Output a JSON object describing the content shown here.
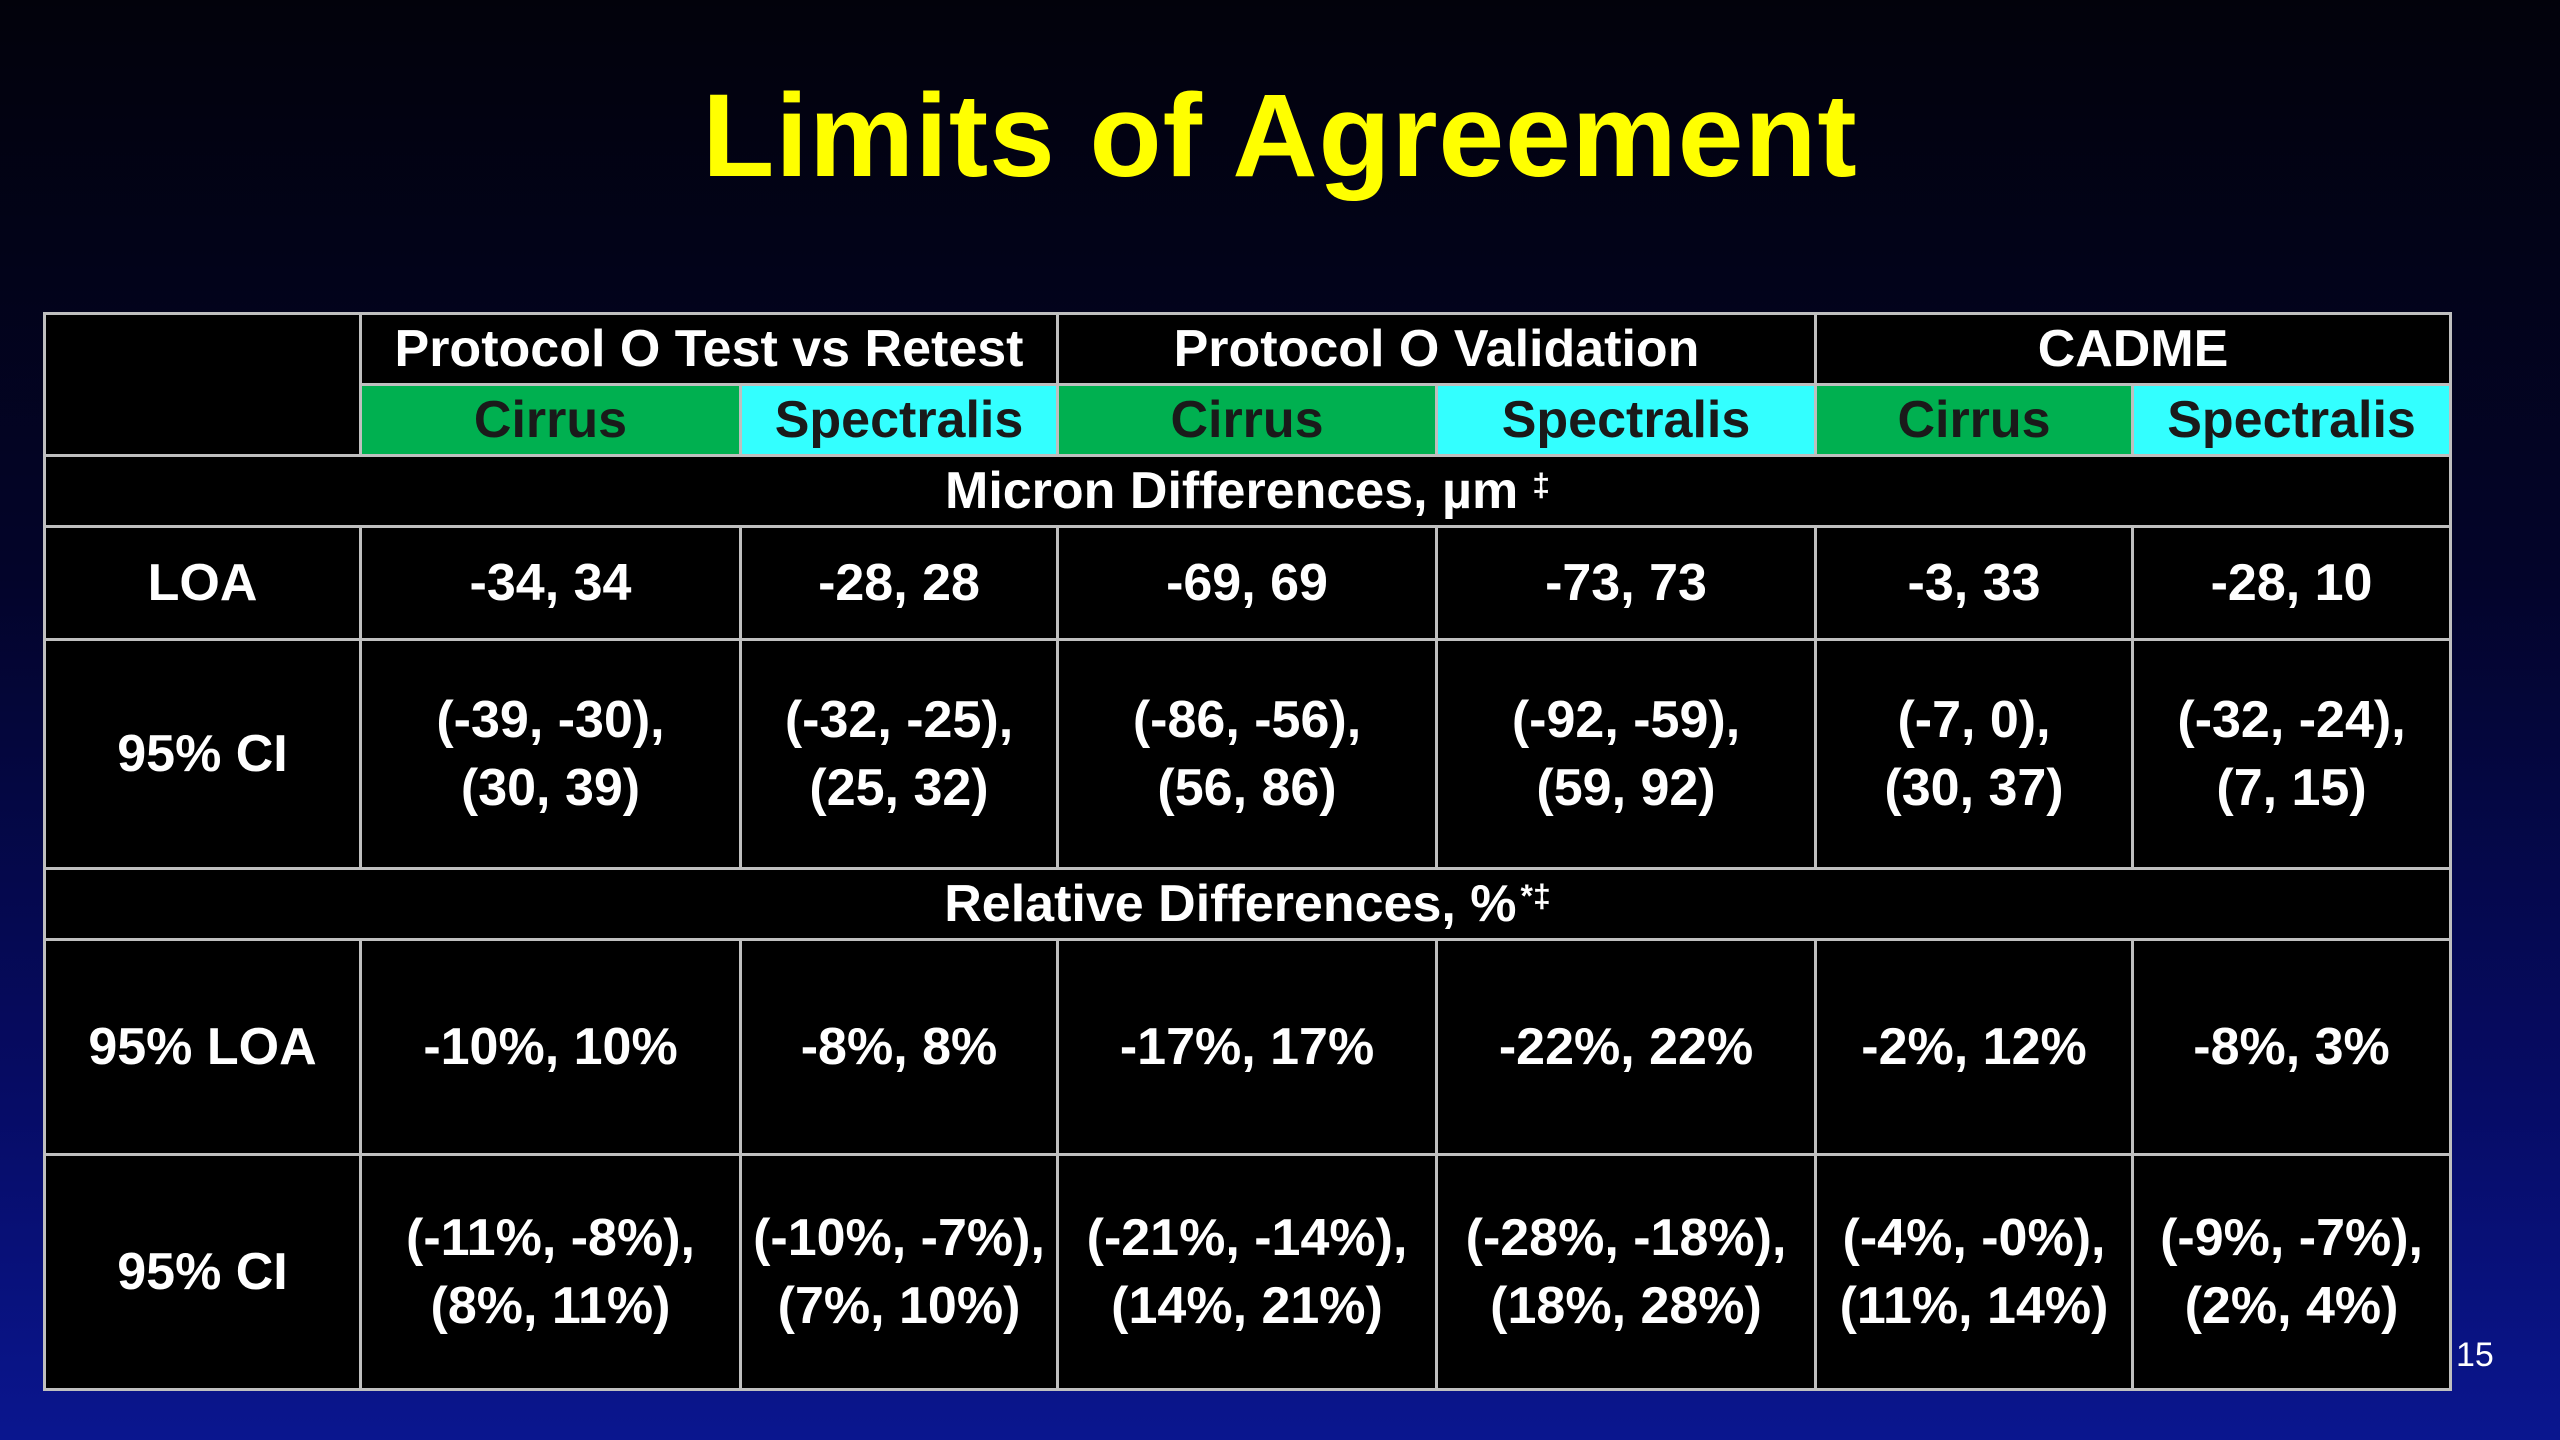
{
  "title": "Limits of Agreement",
  "page_number": "15",
  "colors": {
    "title": "#ffff00",
    "cirrus_header": "#00b050",
    "spectralis_header": "#33ffff",
    "table_background": "#000000",
    "grid_lines": "#bfbfbf"
  },
  "groups": [
    {
      "label": "Protocol O Test vs Retest"
    },
    {
      "label": "Protocol O Validation"
    },
    {
      "label": "CADME"
    }
  ],
  "devices": [
    "Cirrus",
    "Spectralis",
    "Cirrus",
    "Spectralis",
    "Cirrus",
    "Spectralis"
  ],
  "micron": {
    "section_label": "Micron Differences, µm",
    "section_footnote": "‡",
    "loa_label": "LOA",
    "loa": [
      "-34, 34",
      "-28, 28",
      "-69, 69",
      "-73, 73",
      "-3, 33",
      "-28, 10"
    ],
    "ci_label": "95% CI",
    "ci": [
      [
        "(-39, -30),",
        "(30, 39)"
      ],
      [
        "(-32, -25),",
        "(25, 32)"
      ],
      [
        "(-86, -56),",
        "(56, 86)"
      ],
      [
        "(-92, -59),",
        "(59, 92)"
      ],
      [
        "(-7, 0),",
        "(30, 37)"
      ],
      [
        "(-32, -24),",
        "(7, 15)"
      ]
    ]
  },
  "relative": {
    "section_label": "Relative Differences, %",
    "section_footnote": "*‡",
    "loa_label": "95% LOA",
    "loa": [
      "-10%, 10%",
      "-8%, 8%",
      "-17%, 17%",
      "-22%, 22%",
      "-2%, 12%",
      "-8%, 3%"
    ],
    "ci_label": "95% CI",
    "ci": [
      [
        "(-11%, -8%),",
        "(8%, 11%)"
      ],
      [
        "(-10%, -7%),",
        "(7%, 10%)"
      ],
      [
        "(-21%, -14%),",
        "(14%, 21%)"
      ],
      [
        "(-28%, -18%),",
        "(18%, 28%)"
      ],
      [
        "(-4%, -0%),",
        "(11%, 14%)"
      ],
      [
        "(-9%, -7%),",
        "(2%, 4%)"
      ]
    ]
  }
}
